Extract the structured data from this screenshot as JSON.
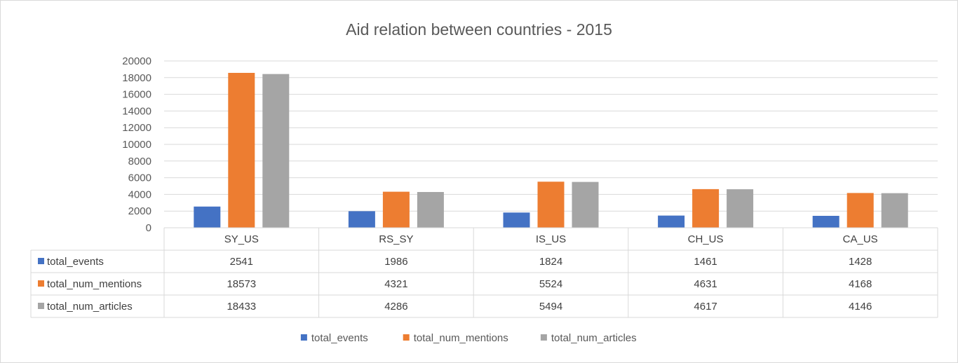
{
  "chart_data": {
    "type": "bar",
    "title": "Aid relation between countries - 2015",
    "categories": [
      "SY_US",
      "RS_SY",
      "IS_US",
      "CH_US",
      "CA_US"
    ],
    "series": [
      {
        "name": "total_events",
        "color": "#4472c4",
        "values": [
          2541,
          1986,
          1824,
          1461,
          1428
        ]
      },
      {
        "name": "total_num_mentions",
        "color": "#ed7d31",
        "values": [
          18573,
          4321,
          5524,
          4631,
          4168
        ]
      },
      {
        "name": "total_num_articles",
        "color": "#a5a5a5",
        "values": [
          18433,
          4286,
          5494,
          4617,
          4146
        ]
      }
    ],
    "ylim": [
      0,
      20000
    ],
    "y_ticks": [
      "0",
      "2000",
      "4000",
      "6000",
      "8000",
      "10000",
      "12000",
      "14000",
      "16000",
      "18000",
      "20000"
    ],
    "grid": true,
    "data_table": true,
    "legend_position": "bottom"
  }
}
